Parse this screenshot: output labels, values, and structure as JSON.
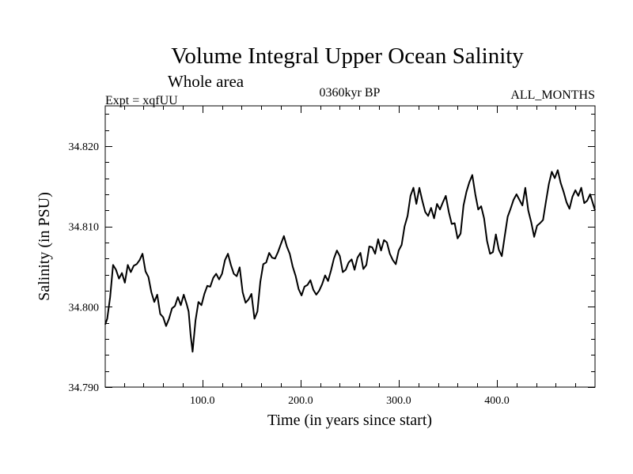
{
  "chart_data": {
    "type": "line",
    "title": "Volume Integral Upper Ocean Salinity",
    "subtitle": "Whole area",
    "experiment": "Expt = xqfUU",
    "period": "0360kyr BP",
    "months": "ALL_MONTHS",
    "xlabel": "Time (in years since start)",
    "ylabel": "Salinity (in PSU)",
    "xlim": [
      1,
      500
    ],
    "ylim": [
      34.79,
      34.825
    ],
    "x_ticks": [
      100,
      200,
      300,
      400
    ],
    "x_tick_labels": [
      "100.0",
      "200.0",
      "300.0",
      "400.0"
    ],
    "y_ticks": [
      34.79,
      34.8,
      34.81,
      34.82
    ],
    "y_tick_labels": [
      "34.790",
      "34.800",
      "34.810",
      "34.820"
    ],
    "grid": false,
    "series": [
      {
        "name": "Salinity",
        "x": [
          1,
          3,
          6,
          9,
          12,
          15,
          18,
          21,
          24,
          27,
          30,
          33,
          36,
          39,
          42,
          45,
          48,
          51,
          54,
          57,
          60,
          63,
          66,
          69,
          72,
          75,
          78,
          81,
          84,
          86,
          88,
          90,
          93,
          96,
          99,
          102,
          105,
          108,
          111,
          114,
          117,
          120,
          123,
          126,
          129,
          132,
          135,
          138,
          141,
          144,
          147,
          150,
          153,
          156,
          159,
          162,
          165,
          168,
          171,
          174,
          177,
          180,
          183,
          186,
          189,
          192,
          195,
          198,
          201,
          204,
          207,
          210,
          213,
          216,
          219,
          222,
          225,
          228,
          231,
          234,
          237,
          240,
          243,
          246,
          249,
          252,
          255,
          258,
          261,
          264,
          267,
          270,
          273,
          276,
          279,
          282,
          285,
          288,
          291,
          294,
          297,
          300,
          303,
          306,
          309,
          312,
          315,
          318,
          321,
          324,
          327,
          330,
          333,
          336,
          339,
          342,
          345,
          348,
          351,
          354,
          357,
          360,
          363,
          366,
          369,
          372,
          375,
          378,
          381,
          384,
          387,
          390,
          393,
          396,
          399,
          402,
          405,
          408,
          411,
          414,
          417,
          420,
          423,
          426,
          429,
          432,
          435,
          438,
          441,
          444,
          447,
          450,
          453,
          456,
          459,
          462,
          465,
          468,
          471,
          474,
          477,
          480,
          483,
          486,
          489,
          492,
          495,
          498,
          500
        ],
        "values": [
          34.7978,
          34.7985,
          34.8012,
          34.8052,
          34.8046,
          34.8035,
          34.8042,
          34.803,
          34.8052,
          34.8043,
          34.8051,
          34.8053,
          34.8058,
          34.8066,
          34.8044,
          34.8037,
          34.8018,
          34.8006,
          34.8015,
          34.7991,
          34.7987,
          34.7976,
          34.7985,
          34.7998,
          34.8001,
          34.8012,
          34.8002,
          34.8015,
          34.8003,
          34.7994,
          34.7965,
          34.7944,
          34.7983,
          34.8006,
          34.8002,
          34.8016,
          34.8026,
          34.8025,
          34.8036,
          34.8041,
          34.8034,
          34.8041,
          34.8058,
          34.8066,
          34.8052,
          34.8041,
          34.8038,
          34.8049,
          34.8018,
          34.8005,
          34.8009,
          34.8016,
          34.7985,
          34.7994,
          34.8031,
          34.8053,
          34.8055,
          34.8067,
          34.8061,
          34.806,
          34.8068,
          34.8078,
          34.8088,
          34.8075,
          34.8066,
          34.805,
          34.8038,
          34.8022,
          34.8014,
          34.8025,
          34.8027,
          34.8033,
          34.8021,
          34.8015,
          34.802,
          34.8028,
          34.8039,
          34.8032,
          34.8045,
          34.806,
          34.807,
          34.8063,
          34.8043,
          34.8046,
          34.8055,
          34.8059,
          34.8046,
          34.8061,
          34.8067,
          34.8047,
          34.8052,
          34.8075,
          34.8074,
          34.8066,
          34.8084,
          34.807,
          34.8083,
          34.808,
          34.8066,
          34.8058,
          34.8053,
          34.807,
          34.8077,
          34.81,
          34.8113,
          34.8138,
          34.8148,
          34.8128,
          34.8148,
          34.8132,
          34.8118,
          34.8113,
          34.8123,
          34.811,
          34.8128,
          34.8121,
          34.813,
          34.8138,
          34.8118,
          34.8103,
          34.8104,
          34.8085,
          34.8091,
          34.8126,
          34.8143,
          34.8155,
          34.8164,
          34.814,
          34.8121,
          34.8125,
          34.811,
          34.8082,
          34.8066,
          34.8068,
          34.809,
          34.8071,
          34.8063,
          34.8088,
          34.8112,
          34.8122,
          34.8133,
          34.814,
          34.8133,
          34.8126,
          34.8148,
          34.812,
          34.8105,
          34.8087,
          34.8101,
          34.8104,
          34.8108,
          34.8131,
          34.8153,
          34.8168,
          34.816,
          34.817,
          34.8154,
          34.8143,
          34.813,
          34.8122,
          34.8137,
          34.8145,
          34.8138,
          34.8148,
          34.8129,
          34.8132,
          34.814,
          34.8128,
          34.812
        ]
      }
    ]
  }
}
